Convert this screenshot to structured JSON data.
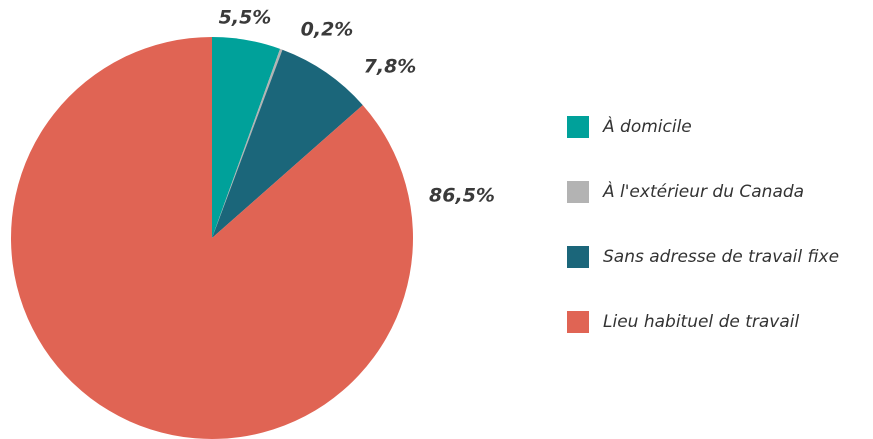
{
  "chart_data": {
    "type": "pie",
    "categories": [
      "À domicile",
      "À l'extérieur du Canada",
      "Sans adresse de travail fixe",
      "Lieu habituel de travail"
    ],
    "values": [
      5.5,
      0.2,
      7.8,
      86.5
    ],
    "value_labels": [
      "5,5%",
      "0,2%",
      "7,8%",
      "86,5%"
    ],
    "colors": [
      "#00a19a",
      "#b3b3b3",
      "#1b667a",
      "#e06454"
    ]
  }
}
